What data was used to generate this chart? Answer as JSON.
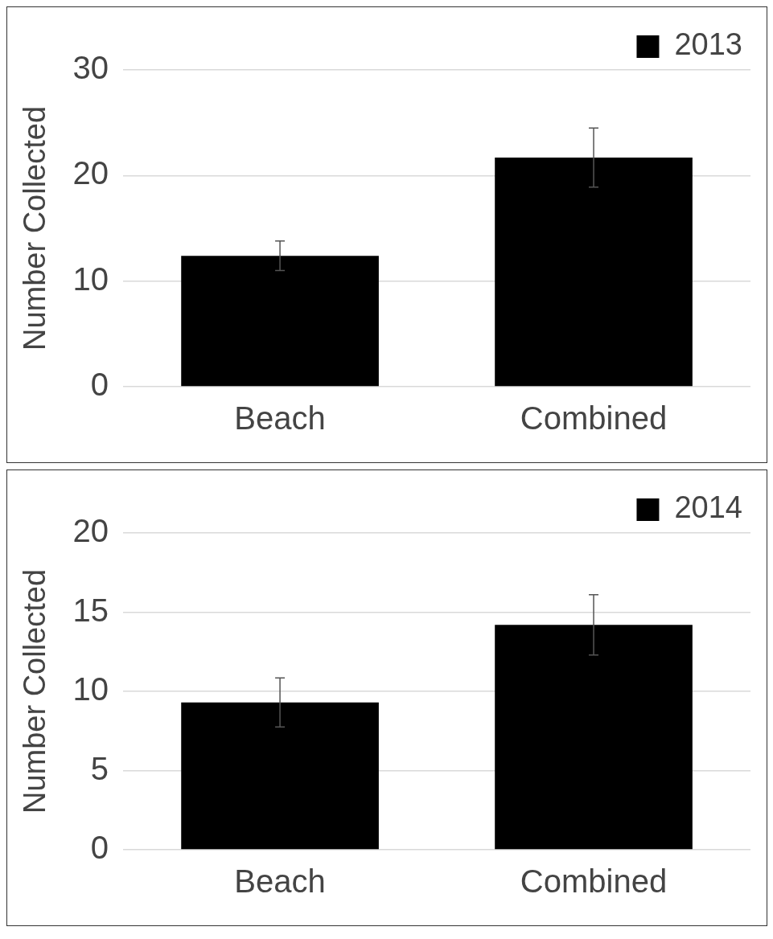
{
  "chart_data": [
    {
      "type": "bar",
      "ylabel": "Number Collected",
      "categories": [
        "Beach",
        "Combined"
      ],
      "series": [
        {
          "name": "2013",
          "color": "#000000",
          "values": [
            12.4,
            21.7
          ],
          "errors": [
            1.4,
            2.8
          ]
        }
      ],
      "ylim": [
        0,
        30
      ],
      "yticks": [
        0,
        10,
        20,
        30
      ],
      "grid": "y",
      "legend": "top right"
    },
    {
      "type": "bar",
      "ylabel": "Number Collected",
      "categories": [
        "Beach",
        "Combined"
      ],
      "series": [
        {
          "name": "2014",
          "color": "#000000",
          "values": [
            9.3,
            14.2
          ],
          "errors": [
            1.55,
            1.9
          ]
        }
      ],
      "ylim": [
        0,
        20
      ],
      "yticks": [
        0,
        5,
        10,
        15,
        20
      ],
      "grid": "y",
      "legend": "top right"
    }
  ]
}
